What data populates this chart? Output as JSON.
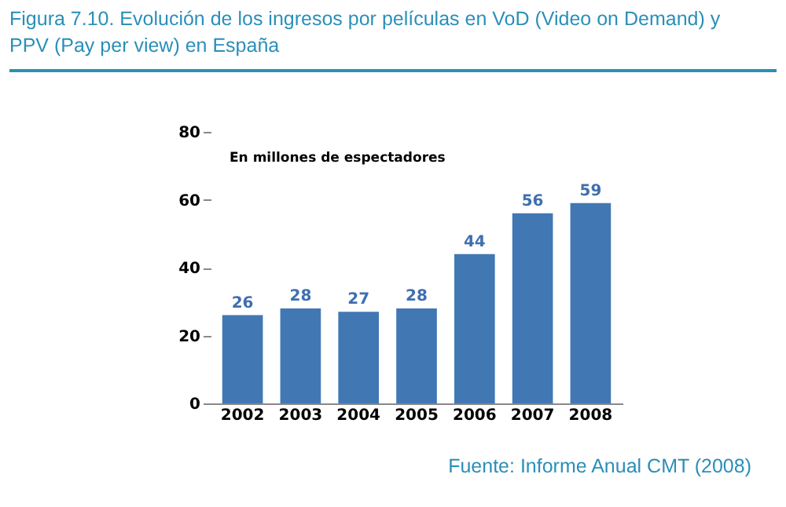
{
  "chart_data": {
    "type": "bar",
    "title": "Figura 7.10. Evolución de los ingresos por películas en VoD (Video on Demand) y PPV (Pay per view) en España",
    "categories": [
      "2002",
      "2003",
      "2004",
      "2005",
      "2006",
      "2007",
      "2008"
    ],
    "values": [
      26,
      28,
      27,
      28,
      44,
      56,
      59
    ],
    "color": "#4178b4",
    "ylim": [
      0,
      80
    ],
    "yticks": [
      0,
      20,
      40,
      60,
      80
    ],
    "grid": false,
    "data_labels": true,
    "annotations": [
      "En millones de espectadores",
      "Fuente: Informe Anual CMT (2008)"
    ]
  }
}
